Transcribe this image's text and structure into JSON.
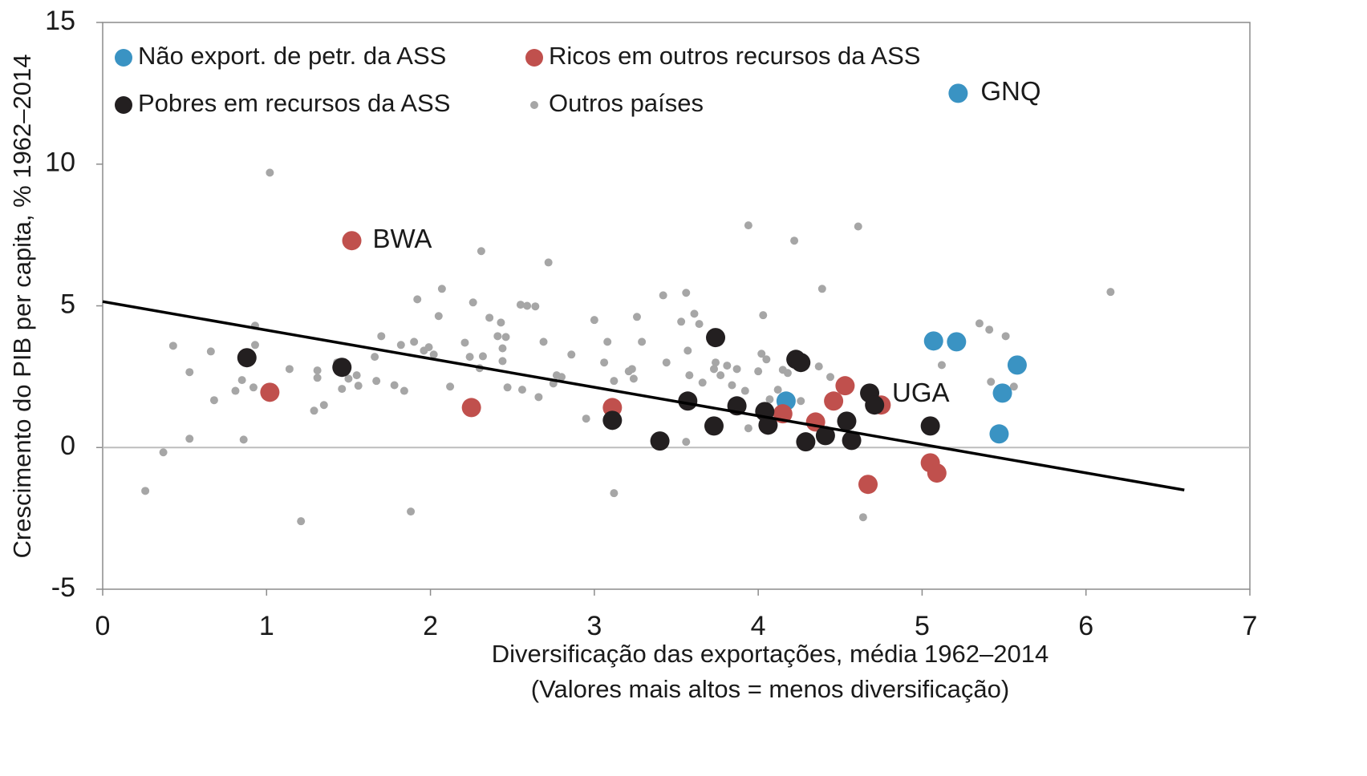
{
  "chart_data": {
    "type": "scatter",
    "ylabel": "Crescimento do PIB per capita, % 1962–2014",
    "xlabel": [
      "Diversificação das exportações, média 1962–2014",
      "(Valores mais altos = menos diversificação)"
    ],
    "xlim": [
      0,
      7
    ],
    "xticks": [
      0,
      1,
      2,
      3,
      4,
      5,
      6,
      7
    ],
    "ylim": [
      -5,
      15
    ],
    "yticks": [
      -5,
      0,
      5,
      10,
      15
    ],
    "zero_line": true,
    "legend": "top-left",
    "annotations": [
      "GNQ",
      "BWA",
      "UGA"
    ],
    "series": [
      {
        "name": "Não export. de petr. da ASS",
        "color": "#3a93c3",
        "x": [
          4.17,
          5.07,
          5.21,
          5.58,
          5.49,
          5.47,
          5.22
        ],
        "values": [
          1.64,
          3.76,
          3.73,
          2.91,
          1.92,
          0.48,
          12.5
        ]
      },
      {
        "name": "Ricos em outros recursos da ASS",
        "color": "#c0504d",
        "x": [
          1.52,
          1.02,
          2.25,
          3.11,
          4.15,
          4.35,
          4.46,
          4.53,
          4.75,
          4.67,
          5.05,
          5.09
        ],
        "values": [
          7.3,
          1.95,
          1.41,
          1.41,
          1.19,
          0.9,
          1.64,
          2.18,
          1.5,
          -1.3,
          -0.54,
          -0.9
        ]
      },
      {
        "name": "Pobres em recursos da ASS",
        "color": "#231f20",
        "x": [
          0.88,
          1.46,
          3.11,
          3.4,
          3.57,
          3.73,
          3.74,
          3.87,
          4.04,
          4.06,
          4.23,
          4.26,
          4.29,
          4.41,
          4.54,
          4.57,
          4.68,
          4.71,
          5.05
        ],
        "values": [
          3.17,
          2.83,
          0.96,
          0.23,
          1.64,
          0.76,
          3.88,
          1.47,
          1.27,
          0.79,
          3.11,
          3.0,
          0.2,
          0.42,
          0.93,
          0.25,
          1.92,
          1.5,
          0.76
        ]
      },
      {
        "name": "Outros países",
        "color": "#a6a6a6",
        "x": [
          0.26,
          0.37,
          0.43,
          0.53,
          0.53,
          0.66,
          0.68,
          0.81,
          0.85,
          0.86,
          0.92,
          0.93,
          0.93,
          1.02,
          1.14,
          1.21,
          1.29,
          1.31,
          1.31,
          1.35,
          1.43,
          1.46,
          1.5,
          1.55,
          1.56,
          1.66,
          1.67,
          1.7,
          1.78,
          1.82,
          1.84,
          1.88,
          1.9,
          1.92,
          1.96,
          1.99,
          2.02,
          2.05,
          2.07,
          2.12,
          2.21,
          2.24,
          2.26,
          2.3,
          2.31,
          2.32,
          2.36,
          2.41,
          2.43,
          2.44,
          2.44,
          2.46,
          2.47,
          2.55,
          2.56,
          2.59,
          2.64,
          2.66,
          2.69,
          2.72,
          2.75,
          2.77,
          2.8,
          2.86,
          2.95,
          3.0,
          3.06,
          3.08,
          3.12,
          3.12,
          3.21,
          3.23,
          3.24,
          3.26,
          3.29,
          3.42,
          3.44,
          3.53,
          3.56,
          3.57,
          3.56,
          3.58,
          3.61,
          3.64,
          3.66,
          3.73,
          3.74,
          3.77,
          3.81,
          3.84,
          3.87,
          3.92,
          3.94,
          3.94,
          4.0,
          4.02,
          4.03,
          4.05,
          4.07,
          4.12,
          4.15,
          4.18,
          4.22,
          4.26,
          4.37,
          4.39,
          4.44,
          4.61,
          4.64,
          5.12,
          5.35,
          5.41,
          5.42,
          5.51,
          5.56,
          6.15
        ],
        "values": [
          -1.53,
          -0.17,
          3.59,
          0.31,
          2.66,
          3.39,
          1.67,
          2.0,
          2.38,
          0.28,
          2.12,
          4.3,
          3.62,
          9.7,
          2.77,
          -2.6,
          1.3,
          2.72,
          2.46,
          1.5,
          3.0,
          2.07,
          2.43,
          2.55,
          2.18,
          3.2,
          2.35,
          3.93,
          2.2,
          3.62,
          2.0,
          -2.26,
          3.73,
          5.23,
          3.42,
          3.54,
          3.28,
          4.64,
          5.6,
          2.15,
          3.7,
          3.2,
          5.12,
          2.8,
          6.93,
          3.22,
          4.58,
          3.93,
          4.41,
          3.5,
          3.05,
          3.9,
          2.12,
          5.04,
          2.04,
          5.0,
          4.98,
          1.78,
          3.73,
          6.53,
          2.26,
          2.55,
          2.49,
          3.28,
          1.02,
          4.5,
          3.0,
          3.73,
          -1.61,
          2.35,
          2.69,
          2.77,
          2.43,
          4.61,
          3.73,
          5.37,
          3.0,
          4.44,
          5.46,
          3.42,
          0.2,
          2.55,
          4.72,
          4.36,
          2.29,
          2.77,
          3.0,
          2.55,
          2.89,
          2.2,
          2.77,
          2.0,
          0.68,
          7.84,
          2.69,
          3.31,
          4.67,
          3.11,
          1.7,
          2.04,
          2.74,
          2.63,
          7.3,
          1.64,
          2.86,
          5.6,
          2.49,
          7.8,
          -2.46,
          2.91,
          4.38,
          4.16,
          2.32,
          3.93,
          2.15,
          5.49
        ]
      }
    ],
    "trendline": {
      "x": [
        0,
        6.6
      ],
      "y": [
        5.15,
        -1.5
      ],
      "color": "#000000"
    }
  }
}
